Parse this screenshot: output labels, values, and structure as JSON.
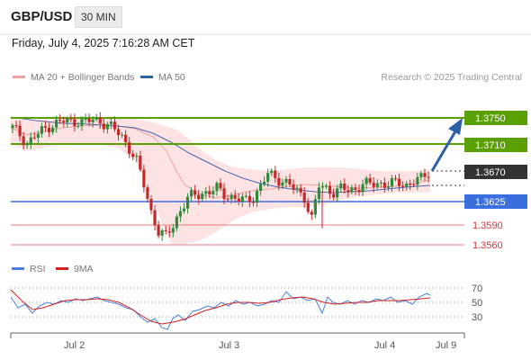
{
  "header": {
    "symbol": "GBP/USD",
    "timeframe": "30 MIN",
    "datetime": "Friday, July 4, 2025 7:16:28 AM CET"
  },
  "legend": {
    "ma20": "MA 20 + Bollinger Bands",
    "ma50": "MA 50",
    "credit": "Research © 2025 Trading Central"
  },
  "levels": {
    "r2": "1.3750",
    "r1": "1.3710",
    "last": "1.3670",
    "pivot": "1.3625",
    "s1": "1.3590",
    "s2": "1.3560"
  },
  "rsi_legend": {
    "rsi": "RSI",
    "ma": "9MA"
  },
  "rsi_axis": [
    "70",
    "50",
    "30"
  ],
  "x_axis": [
    "Jul 2",
    "Jul 3",
    "Jul 4",
    "Jul 9"
  ],
  "colors": {
    "resistance": "#5aa000",
    "pivot": "#3b6fe0",
    "support": "#f07878",
    "last": "#333333",
    "arrow": "#2b5fa8",
    "bullish": "#2e8b3a",
    "bearish": "#c62828",
    "ma20": "#f0a0a0",
    "ma50": "#4a66b0",
    "bollinger": "#fde0e0",
    "rsi": "#4a7fe0",
    "rsi_ma": "#d62020"
  },
  "chart_data": {
    "type": "candlestick",
    "price_levels": [
      1.375,
      1.371,
      1.367,
      1.3625,
      1.359,
      1.356
    ],
    "last_price": 1.367,
    "close_path": [
      1.3735,
      1.3725,
      1.3712,
      1.3722,
      1.373,
      1.3738,
      1.3742,
      1.3745,
      1.3744,
      1.3746,
      1.3743,
      1.3747,
      1.3745,
      1.374,
      1.3732,
      1.3722,
      1.3705,
      1.3685,
      1.365,
      1.361,
      1.358,
      1.3572,
      1.359,
      1.3612,
      1.363,
      1.3634,
      1.3638,
      1.364,
      1.3644,
      1.3636,
      1.3632,
      1.3628,
      1.3626,
      1.3632,
      1.3648,
      1.3666,
      1.3661,
      1.3656,
      1.365,
      1.364,
      1.3632,
      1.36,
      1.3648,
      1.3644,
      1.364,
      1.3644,
      1.3641,
      1.3644,
      1.3652,
      1.365,
      1.3652,
      1.3652,
      1.3652,
      1.3652,
      1.365,
      1.3656,
      1.3658,
      1.3668
    ],
    "rsi": {
      "levels": [
        70,
        50,
        30
      ]
    }
  }
}
